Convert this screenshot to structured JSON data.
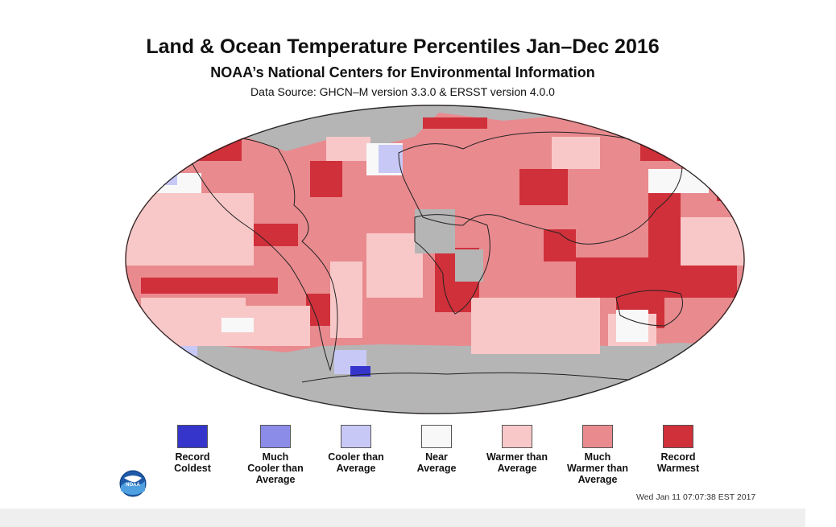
{
  "title": "Land & Ocean Temperature Percentiles Jan–Dec 2016",
  "subtitle": "NOAA’s National Centers for Environmental Information",
  "source": "Data Source: GHCN–M version 3.3.0 & ERSST version 4.0.0",
  "legend": [
    {
      "label_lines": [
        "Record",
        "Coldest"
      ],
      "color": "#3535cc"
    },
    {
      "label_lines": [
        "Much",
        "Cooler than",
        "Average"
      ],
      "color": "#8b8be8"
    },
    {
      "label_lines": [
        "Cooler than",
        "Average"
      ],
      "color": "#c8c8f6"
    },
    {
      "label_lines": [
        "Near",
        "Average"
      ],
      "color": "#f8f8f8"
    },
    {
      "label_lines": [
        "Warmer than",
        "Average"
      ],
      "color": "#f8c8c8"
    },
    {
      "label_lines": [
        "Much",
        "Warmer than",
        "Average"
      ],
      "color": "#e98a8e"
    },
    {
      "label_lines": [
        "Record",
        "Warmest"
      ],
      "color": "#d0303a"
    }
  ],
  "colors": {
    "no_data": "#b5b5b5",
    "background": "#ffffff"
  },
  "timestamp": "Wed Jan 11 07:07:38 EST 2017",
  "logo": {
    "text": "NOAA",
    "icon": "noaa-logo-icon"
  }
}
